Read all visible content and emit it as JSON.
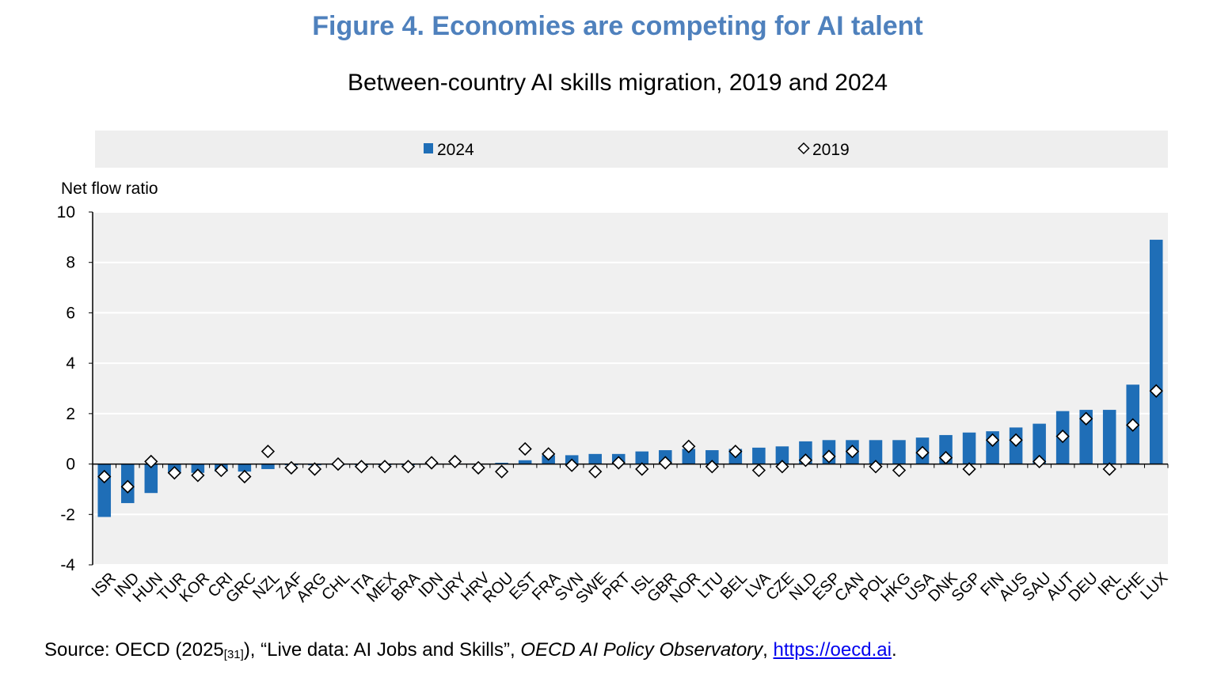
{
  "title": "Figure 4. Economies are competing for AI talent",
  "subtitle": "Between-country AI skills migration, 2019 and 2024",
  "source": {
    "prefix": "Source: OECD (2025",
    "ref": "[31]",
    "mid": "), “Live data: AI Jobs and Skills”, ",
    "italic": "OECD AI Policy Observatory",
    "comma": ", ",
    "link": "https://oecd.ai",
    "end": "."
  },
  "colors": {
    "bar": "#1f6eb7",
    "title": "#4f81bd",
    "plot_bg": "#f0f0f0",
    "legend_bg": "#eeeeee"
  },
  "chart_data": {
    "type": "bar",
    "ylabel": "Net flow ratio",
    "ylim": [
      -4,
      10
    ],
    "yticks": [
      -4,
      -2,
      0,
      2,
      4,
      6,
      8,
      10
    ],
    "grid": true,
    "legend_position": "top",
    "categories": [
      "ISR",
      "IND",
      "HUN",
      "TUR",
      "KOR",
      "CRI",
      "GRC",
      "NZL",
      "ZAF",
      "ARG",
      "CHL",
      "ITA",
      "MEX",
      "BRA",
      "IDN",
      "URY",
      "HRV",
      "ROU",
      "EST",
      "FRA",
      "SVN",
      "SWE",
      "PRT",
      "ISL",
      "GBR",
      "NOR",
      "LTU",
      "BEL",
      "LVA",
      "CZE",
      "NLD",
      "ESP",
      "CAN",
      "POL",
      "HKG",
      "USA",
      "DNK",
      "SGP",
      "FIN",
      "AUS",
      "SAU",
      "AUT",
      "DEU",
      "IRL",
      "CHE",
      "LUX"
    ],
    "series": [
      {
        "name": "2024",
        "kind": "bar",
        "values": [
          -2.1,
          -1.55,
          -1.15,
          -0.35,
          -0.35,
          -0.3,
          -0.3,
          -0.2,
          -0.05,
          -0.05,
          -0.05,
          -0.05,
          -0.05,
          -0.05,
          0.0,
          0.0,
          0.0,
          0.05,
          0.15,
          0.35,
          0.35,
          0.4,
          0.4,
          0.5,
          0.55,
          0.6,
          0.55,
          0.6,
          0.65,
          0.7,
          0.9,
          0.95,
          0.95,
          0.95,
          0.95,
          1.05,
          1.15,
          1.25,
          1.3,
          1.45,
          1.6,
          2.1,
          2.15,
          2.15,
          3.15,
          8.9
        ]
      },
      {
        "name": "2019",
        "kind": "marker",
        "values": [
          -0.5,
          -0.9,
          0.1,
          -0.35,
          -0.45,
          -0.25,
          -0.5,
          0.5,
          -0.15,
          -0.2,
          0.0,
          -0.1,
          -0.1,
          -0.1,
          0.05,
          0.1,
          -0.15,
          -0.3,
          0.6,
          0.4,
          -0.05,
          -0.3,
          0.05,
          -0.2,
          0.05,
          0.7,
          -0.1,
          0.5,
          -0.25,
          -0.1,
          0.15,
          0.3,
          0.5,
          -0.1,
          -0.25,
          0.45,
          0.25,
          -0.2,
          0.95,
          0.95,
          0.1,
          1.1,
          1.8,
          -0.2,
          1.55,
          2.9
        ]
      }
    ]
  }
}
